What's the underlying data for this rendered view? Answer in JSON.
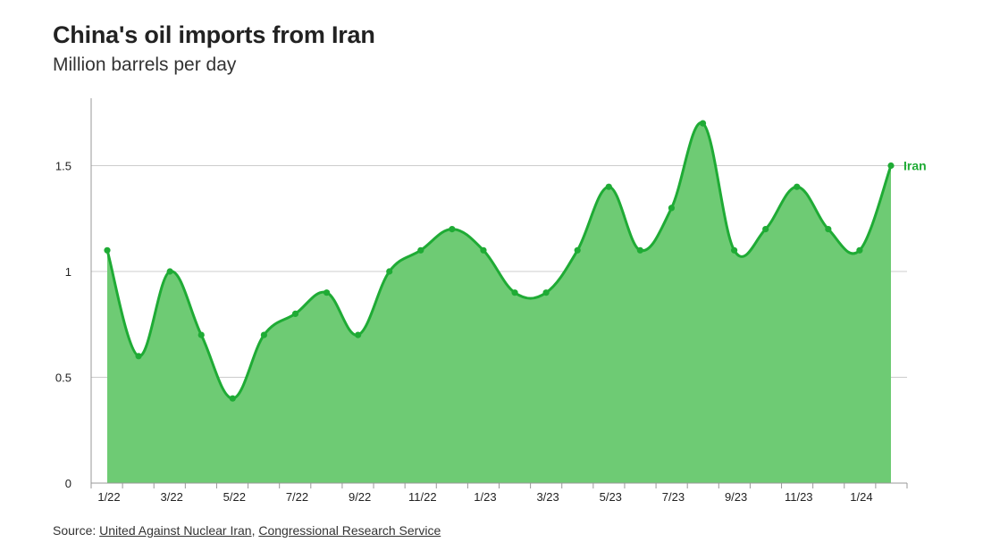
{
  "title": "China's oil imports from Iran",
  "subtitle": "Million barrels per day",
  "source": {
    "prefix": "Source: ",
    "links": [
      "United Against Nuclear Iran",
      "Congressional Research Service"
    ],
    "separator": ", "
  },
  "colors": {
    "line": "#1fab35",
    "fill": "#6ecb74",
    "grid": "#cccccc",
    "axis": "#999999"
  },
  "chart_data": {
    "type": "area",
    "x": [
      "1/22",
      "2/22",
      "3/22",
      "4/22",
      "5/22",
      "6/22",
      "7/22",
      "8/22",
      "9/22",
      "10/22",
      "11/22",
      "12/22",
      "1/23",
      "2/23",
      "3/23",
      "4/23",
      "5/23",
      "6/23",
      "7/23",
      "8/23",
      "9/23",
      "10/23",
      "11/23",
      "12/23",
      "1/24",
      "2/24"
    ],
    "tick_labels": [
      "1/22",
      "3/22",
      "5/22",
      "7/22",
      "9/22",
      "11/22",
      "1/23",
      "3/23",
      "5/23",
      "7/23",
      "9/23",
      "11/23",
      "1/24"
    ],
    "series": [
      {
        "name": "Iran",
        "values": [
          1.1,
          0.6,
          1.0,
          0.7,
          0.4,
          0.7,
          0.8,
          0.9,
          0.7,
          1.0,
          1.1,
          1.2,
          1.1,
          0.9,
          0.9,
          1.1,
          1.4,
          1.1,
          1.3,
          1.7,
          1.1,
          1.2,
          1.4,
          1.2,
          1.1,
          1.5
        ]
      }
    ],
    "yticks": [
      "0",
      "0.5",
      "1",
      "1.5"
    ],
    "ylim": [
      0,
      1.8
    ],
    "grid": true,
    "legend": "end-label"
  }
}
